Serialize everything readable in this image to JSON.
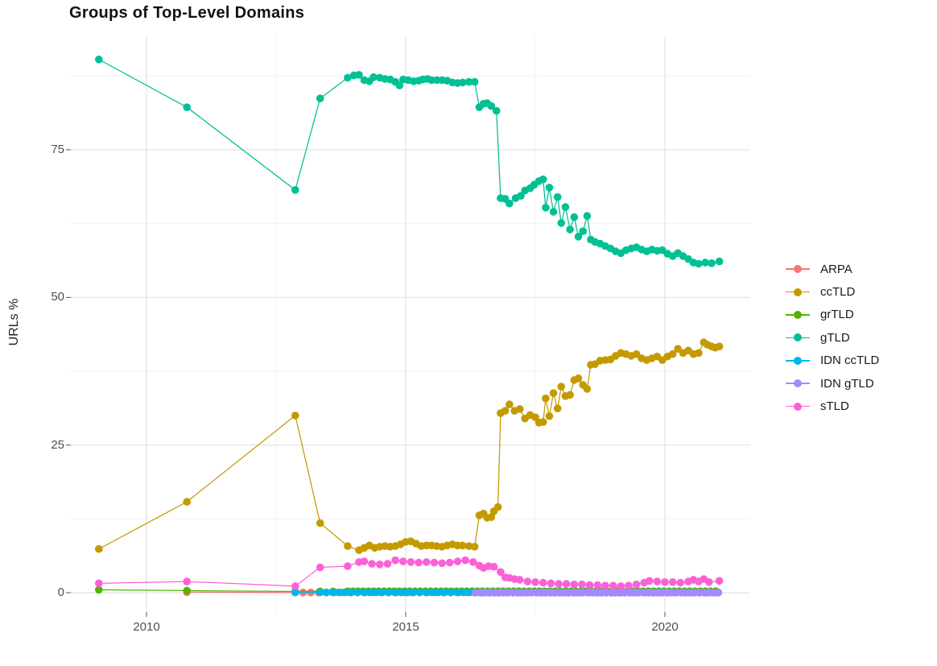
{
  "chart_data": {
    "type": "line",
    "title": "Groups of Top-Level Domains",
    "xlabel": "",
    "ylabel": "URLs %",
    "xlim": [
      2008.6,
      2021.6
    ],
    "ylim": [
      0,
      90.5
    ],
    "xtick_values": [
      2010,
      2015,
      2020
    ],
    "xticklabels": [
      "2010",
      "2015",
      "2020"
    ],
    "ytick_values": [
      0,
      25,
      50,
      75
    ],
    "yticklabels": [
      "0",
      "25",
      "50",
      "75"
    ],
    "grid": true,
    "legend_position": "right",
    "series": [
      {
        "name": "ARPA",
        "color": "#F8766D",
        "points": [
          [
            2010.78,
            0.1
          ]
        ],
        "runs": [
          {
            "from": 2012.87,
            "to": 2021.0,
            "step": 0.15,
            "value": 0.04
          }
        ]
      },
      {
        "name": "ccTLD",
        "color": "#C49A00",
        "points": [
          [
            2009.08,
            7.4
          ],
          [
            2010.78,
            15.4
          ],
          [
            2012.87,
            30.0
          ],
          [
            2013.35,
            11.8
          ],
          [
            2013.88,
            7.9
          ],
          [
            2014.1,
            7.2
          ],
          [
            2014.2,
            7.6
          ],
          [
            2014.3,
            8.0
          ],
          [
            2014.4,
            7.6
          ],
          [
            2014.5,
            7.8
          ],
          [
            2014.6,
            7.9
          ],
          [
            2014.7,
            7.8
          ],
          [
            2014.8,
            7.9
          ],
          [
            2014.9,
            8.2
          ],
          [
            2015.0,
            8.6
          ],
          [
            2015.1,
            8.7
          ],
          [
            2015.2,
            8.3
          ],
          [
            2015.3,
            7.9
          ],
          [
            2015.4,
            8.0
          ],
          [
            2015.5,
            8.0
          ],
          [
            2015.6,
            7.9
          ],
          [
            2015.7,
            7.8
          ],
          [
            2015.8,
            8.0
          ],
          [
            2015.9,
            8.2
          ],
          [
            2016.0,
            8.0
          ],
          [
            2016.1,
            8.0
          ],
          [
            2016.22,
            7.9
          ],
          [
            2016.33,
            7.8
          ],
          [
            2016.42,
            13.1
          ],
          [
            2016.5,
            13.4
          ],
          [
            2016.57,
            12.7
          ],
          [
            2016.65,
            12.8
          ],
          [
            2016.7,
            13.8
          ],
          [
            2016.78,
            14.5
          ],
          [
            2016.83,
            30.4
          ],
          [
            2016.92,
            30.8
          ],
          [
            2017.0,
            31.9
          ],
          [
            2017.1,
            30.8
          ],
          [
            2017.2,
            31.1
          ],
          [
            2017.3,
            29.5
          ],
          [
            2017.4,
            30.1
          ],
          [
            2017.5,
            29.7
          ],
          [
            2017.57,
            28.8
          ],
          [
            2017.65,
            28.9
          ],
          [
            2017.7,
            32.9
          ],
          [
            2017.77,
            29.9
          ],
          [
            2017.85,
            33.8
          ],
          [
            2017.93,
            31.2
          ],
          [
            2018.0,
            34.9
          ],
          [
            2018.08,
            33.3
          ],
          [
            2018.17,
            33.5
          ],
          [
            2018.25,
            36.0
          ],
          [
            2018.33,
            36.3
          ],
          [
            2018.42,
            35.2
          ],
          [
            2018.5,
            34.5
          ],
          [
            2018.57,
            38.6
          ],
          [
            2018.65,
            38.7
          ],
          [
            2018.75,
            39.3
          ],
          [
            2018.85,
            39.4
          ],
          [
            2018.95,
            39.5
          ],
          [
            2019.05,
            40.1
          ],
          [
            2019.15,
            40.6
          ],
          [
            2019.25,
            40.4
          ],
          [
            2019.35,
            40.1
          ],
          [
            2019.45,
            40.4
          ],
          [
            2019.55,
            39.7
          ],
          [
            2019.65,
            39.4
          ],
          [
            2019.75,
            39.7
          ],
          [
            2019.85,
            40.0
          ],
          [
            2019.95,
            39.4
          ],
          [
            2020.05,
            40.0
          ],
          [
            2020.15,
            40.4
          ],
          [
            2020.25,
            41.3
          ],
          [
            2020.35,
            40.6
          ],
          [
            2020.45,
            41.0
          ],
          [
            2020.55,
            40.4
          ],
          [
            2020.65,
            40.6
          ],
          [
            2020.75,
            42.4
          ],
          [
            2020.82,
            42.0
          ],
          [
            2020.9,
            41.7
          ],
          [
            2020.97,
            41.5
          ],
          [
            2021.05,
            41.7
          ]
        ],
        "runs": []
      },
      {
        "name": "grTLD",
        "color": "#53B400",
        "points": [
          [
            2009.08,
            0.5
          ],
          [
            2010.78,
            0.35
          ],
          [
            2012.87,
            0.2
          ],
          [
            2013.35,
            0.22
          ],
          [
            2013.6,
            0.22
          ]
        ],
        "runs": [
          {
            "from": 2013.88,
            "to": 2021.0,
            "step": 0.1,
            "value": 0.25
          }
        ]
      },
      {
        "name": "gTLD",
        "color": "#00C094",
        "points": [
          [
            2009.08,
            90.3
          ],
          [
            2010.78,
            82.2
          ],
          [
            2012.87,
            68.2
          ],
          [
            2013.35,
            83.7
          ],
          [
            2013.88,
            87.2
          ],
          [
            2014.0,
            87.6
          ],
          [
            2014.1,
            87.7
          ],
          [
            2014.2,
            86.8
          ],
          [
            2014.3,
            86.6
          ],
          [
            2014.38,
            87.3
          ],
          [
            2014.5,
            87.2
          ],
          [
            2014.6,
            87.0
          ],
          [
            2014.7,
            86.9
          ],
          [
            2014.8,
            86.5
          ],
          [
            2014.88,
            85.9
          ],
          [
            2014.95,
            86.9
          ],
          [
            2015.05,
            86.8
          ],
          [
            2015.15,
            86.6
          ],
          [
            2015.25,
            86.7
          ],
          [
            2015.33,
            86.9
          ],
          [
            2015.42,
            87.0
          ],
          [
            2015.5,
            86.8
          ],
          [
            2015.6,
            86.8
          ],
          [
            2015.7,
            86.8
          ],
          [
            2015.8,
            86.7
          ],
          [
            2015.9,
            86.4
          ],
          [
            2016.0,
            86.3
          ],
          [
            2016.1,
            86.4
          ],
          [
            2016.22,
            86.5
          ],
          [
            2016.33,
            86.5
          ],
          [
            2016.42,
            82.2
          ],
          [
            2016.5,
            82.8
          ],
          [
            2016.57,
            82.9
          ],
          [
            2016.65,
            82.4
          ],
          [
            2016.75,
            81.6
          ],
          [
            2016.83,
            66.8
          ],
          [
            2016.92,
            66.7
          ],
          [
            2017.0,
            65.9
          ],
          [
            2017.12,
            66.8
          ],
          [
            2017.22,
            67.2
          ],
          [
            2017.3,
            68.1
          ],
          [
            2017.4,
            68.5
          ],
          [
            2017.48,
            69.1
          ],
          [
            2017.57,
            69.7
          ],
          [
            2017.65,
            70.0
          ],
          [
            2017.7,
            65.2
          ],
          [
            2017.77,
            68.6
          ],
          [
            2017.85,
            64.5
          ],
          [
            2017.93,
            67.0
          ],
          [
            2018.0,
            62.6
          ],
          [
            2018.08,
            65.3
          ],
          [
            2018.17,
            61.5
          ],
          [
            2018.25,
            63.6
          ],
          [
            2018.33,
            60.3
          ],
          [
            2018.42,
            61.2
          ],
          [
            2018.5,
            63.8
          ],
          [
            2018.57,
            59.8
          ],
          [
            2018.65,
            59.4
          ],
          [
            2018.75,
            59.1
          ],
          [
            2018.85,
            58.7
          ],
          [
            2018.95,
            58.3
          ],
          [
            2019.05,
            57.8
          ],
          [
            2019.15,
            57.5
          ],
          [
            2019.25,
            58.0
          ],
          [
            2019.35,
            58.3
          ],
          [
            2019.45,
            58.5
          ],
          [
            2019.55,
            58.1
          ],
          [
            2019.65,
            57.8
          ],
          [
            2019.75,
            58.1
          ],
          [
            2019.85,
            57.9
          ],
          [
            2019.95,
            58.0
          ],
          [
            2020.05,
            57.4
          ],
          [
            2020.15,
            57.0
          ],
          [
            2020.25,
            57.5
          ],
          [
            2020.35,
            57.0
          ],
          [
            2020.45,
            56.5
          ],
          [
            2020.55,
            55.9
          ],
          [
            2020.65,
            55.7
          ],
          [
            2020.78,
            55.9
          ],
          [
            2020.9,
            55.8
          ],
          [
            2021.05,
            56.1
          ]
        ],
        "runs": []
      },
      {
        "name": "IDN ccTLD",
        "color": "#00B6EB",
        "points": [
          [
            2012.87,
            0.05
          ]
        ],
        "runs": [
          {
            "from": 2013.35,
            "to": 2021.05,
            "step": 0.12,
            "value": 0.05
          }
        ]
      },
      {
        "name": "IDN gTLD",
        "color": "#A58AFF",
        "points": [],
        "runs": [
          {
            "from": 2016.35,
            "to": 2021.1,
            "step": 0.09,
            "value": 0.02
          }
        ]
      },
      {
        "name": "sTLD",
        "color": "#FB61D7",
        "points": [
          [
            2009.08,
            1.6
          ],
          [
            2010.78,
            1.9
          ],
          [
            2012.87,
            1.1
          ],
          [
            2013.35,
            4.3
          ],
          [
            2013.88,
            4.5
          ],
          [
            2014.1,
            5.2
          ],
          [
            2014.2,
            5.3
          ],
          [
            2014.35,
            4.9
          ],
          [
            2014.5,
            4.8
          ],
          [
            2014.65,
            4.9
          ],
          [
            2014.8,
            5.5
          ],
          [
            2014.95,
            5.3
          ],
          [
            2015.1,
            5.2
          ],
          [
            2015.25,
            5.1
          ],
          [
            2015.4,
            5.2
          ],
          [
            2015.55,
            5.1
          ],
          [
            2015.7,
            5.0
          ],
          [
            2015.85,
            5.1
          ],
          [
            2016.0,
            5.3
          ],
          [
            2016.15,
            5.5
          ],
          [
            2016.3,
            5.2
          ],
          [
            2016.42,
            4.6
          ],
          [
            2016.5,
            4.2
          ],
          [
            2016.6,
            4.5
          ],
          [
            2016.7,
            4.4
          ],
          [
            2016.83,
            3.5
          ],
          [
            2016.92,
            2.6
          ],
          [
            2017.0,
            2.5
          ],
          [
            2017.1,
            2.3
          ],
          [
            2017.2,
            2.2
          ],
          [
            2017.35,
            1.9
          ],
          [
            2017.5,
            1.8
          ],
          [
            2017.65,
            1.7
          ],
          [
            2017.8,
            1.6
          ],
          [
            2017.95,
            1.5
          ],
          [
            2018.1,
            1.5
          ],
          [
            2018.25,
            1.4
          ],
          [
            2018.4,
            1.4
          ],
          [
            2018.55,
            1.3
          ],
          [
            2018.7,
            1.3
          ],
          [
            2018.85,
            1.2
          ],
          [
            2019.0,
            1.2
          ],
          [
            2019.15,
            1.1
          ],
          [
            2019.3,
            1.2
          ],
          [
            2019.45,
            1.4
          ],
          [
            2019.6,
            1.7
          ],
          [
            2019.7,
            2.0
          ],
          [
            2019.85,
            1.9
          ],
          [
            2020.0,
            1.8
          ],
          [
            2020.15,
            1.8
          ],
          [
            2020.3,
            1.7
          ],
          [
            2020.45,
            1.9
          ],
          [
            2020.55,
            2.2
          ],
          [
            2020.65,
            1.9
          ],
          [
            2020.75,
            2.3
          ],
          [
            2020.85,
            1.8
          ],
          [
            2021.05,
            2.0
          ]
        ],
        "runs": []
      }
    ]
  }
}
